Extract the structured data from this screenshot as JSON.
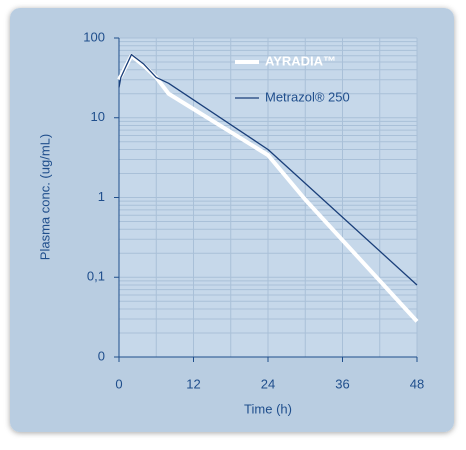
{
  "chart_data": {
    "type": "line",
    "xlabel": "Time (h)",
    "ylabel": "Plasma conc. (ug/mL)",
    "xlim": [
      0,
      48
    ],
    "xticks": [
      0,
      12,
      24,
      36,
      48
    ],
    "xgrid": [
      6,
      18,
      30,
      42
    ],
    "ylim": [
      0.01,
      100
    ],
    "yscale": "log",
    "yticks": [
      {
        "value": 0.01,
        "label": "0"
      },
      {
        "value": 0.1,
        "label": "0,1"
      },
      1,
      10,
      100
    ],
    "ygrid": [
      0.02,
      0.03,
      0.04,
      0.05,
      0.06,
      0.07,
      0.08,
      0.09,
      0.2,
      0.3,
      0.4,
      0.5,
      0.6,
      0.7,
      0.8,
      0.9,
      2,
      3,
      4,
      5,
      6,
      7,
      8,
      9,
      20,
      30,
      40,
      50,
      60,
      70,
      80,
      90
    ],
    "legend": "upper right",
    "series": [
      {
        "name": "AYRADIA™",
        "color": "#ffffff",
        "width": 4,
        "x": [
          0,
          2,
          4,
          6,
          8,
          24,
          30,
          48
        ],
        "values": [
          30,
          60,
          45,
          32,
          20,
          3.4,
          0.94,
          0.028
        ]
      },
      {
        "name": "Metrazol® 250",
        "color": "#1a3f7a",
        "width": 1.3,
        "x": [
          0,
          0.3,
          2,
          4,
          6,
          8,
          24,
          48
        ],
        "values": [
          24,
          32,
          62,
          47,
          32,
          27,
          4,
          0.08
        ]
      }
    ]
  }
}
